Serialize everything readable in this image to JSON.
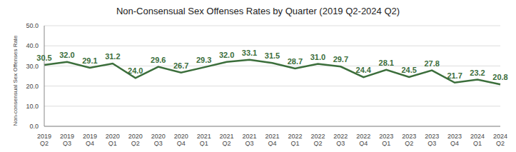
{
  "chart_data": {
    "type": "line",
    "title": "Non-Consensual Sex Offenses Rates by Quarter (2019 Q2-2024 Q2)",
    "y_label": "Non-consensual Sex Offenses Rate",
    "categories": [
      "2019 Q2",
      "2019 Q3",
      "2019 Q4",
      "2020 Q1",
      "2020 Q2",
      "2020 Q3",
      "2020 Q4",
      "2021 Q1",
      "2021 Q2",
      "2021 Q3",
      "2021 Q4",
      "2022 Q1",
      "2022 Q2",
      "2022 Q3",
      "2022 Q4",
      "2023 Q1",
      "2023 Q2",
      "2023 Q3",
      "2023 Q4",
      "2024 Q1",
      "2024 Q2"
    ],
    "values": [
      30.5,
      32.0,
      29.1,
      31.2,
      24.0,
      29.6,
      26.7,
      29.3,
      32.0,
      33.1,
      31.5,
      28.7,
      31.0,
      29.7,
      24.4,
      28.1,
      24.5,
      27.8,
      21.7,
      23.2,
      20.8
    ],
    "value_labels": [
      "30.5",
      "32.0",
      "29.1",
      "31.2",
      "24.0",
      "29.6",
      "26.7",
      "29.3",
      "32.0",
      "33.1",
      "31.5",
      "28.7",
      "31.0",
      "29.7",
      "24.4",
      "28.1",
      "24.5",
      "27.8",
      "21.7",
      "23.2",
      "20.8"
    ],
    "color": "#3b6e3b",
    "ylim": [
      0,
      50
    ],
    "yticks": [
      {
        "value": 0,
        "label": "0.0"
      },
      {
        "value": 10,
        "label": "10.0"
      },
      {
        "value": 20,
        "label": "20.0"
      },
      {
        "value": 30,
        "label": "30.0"
      },
      {
        "value": 40,
        "label": "40.0"
      },
      {
        "value": 50,
        "label": "50.0"
      }
    ],
    "grid": true,
    "data_labels": true
  }
}
